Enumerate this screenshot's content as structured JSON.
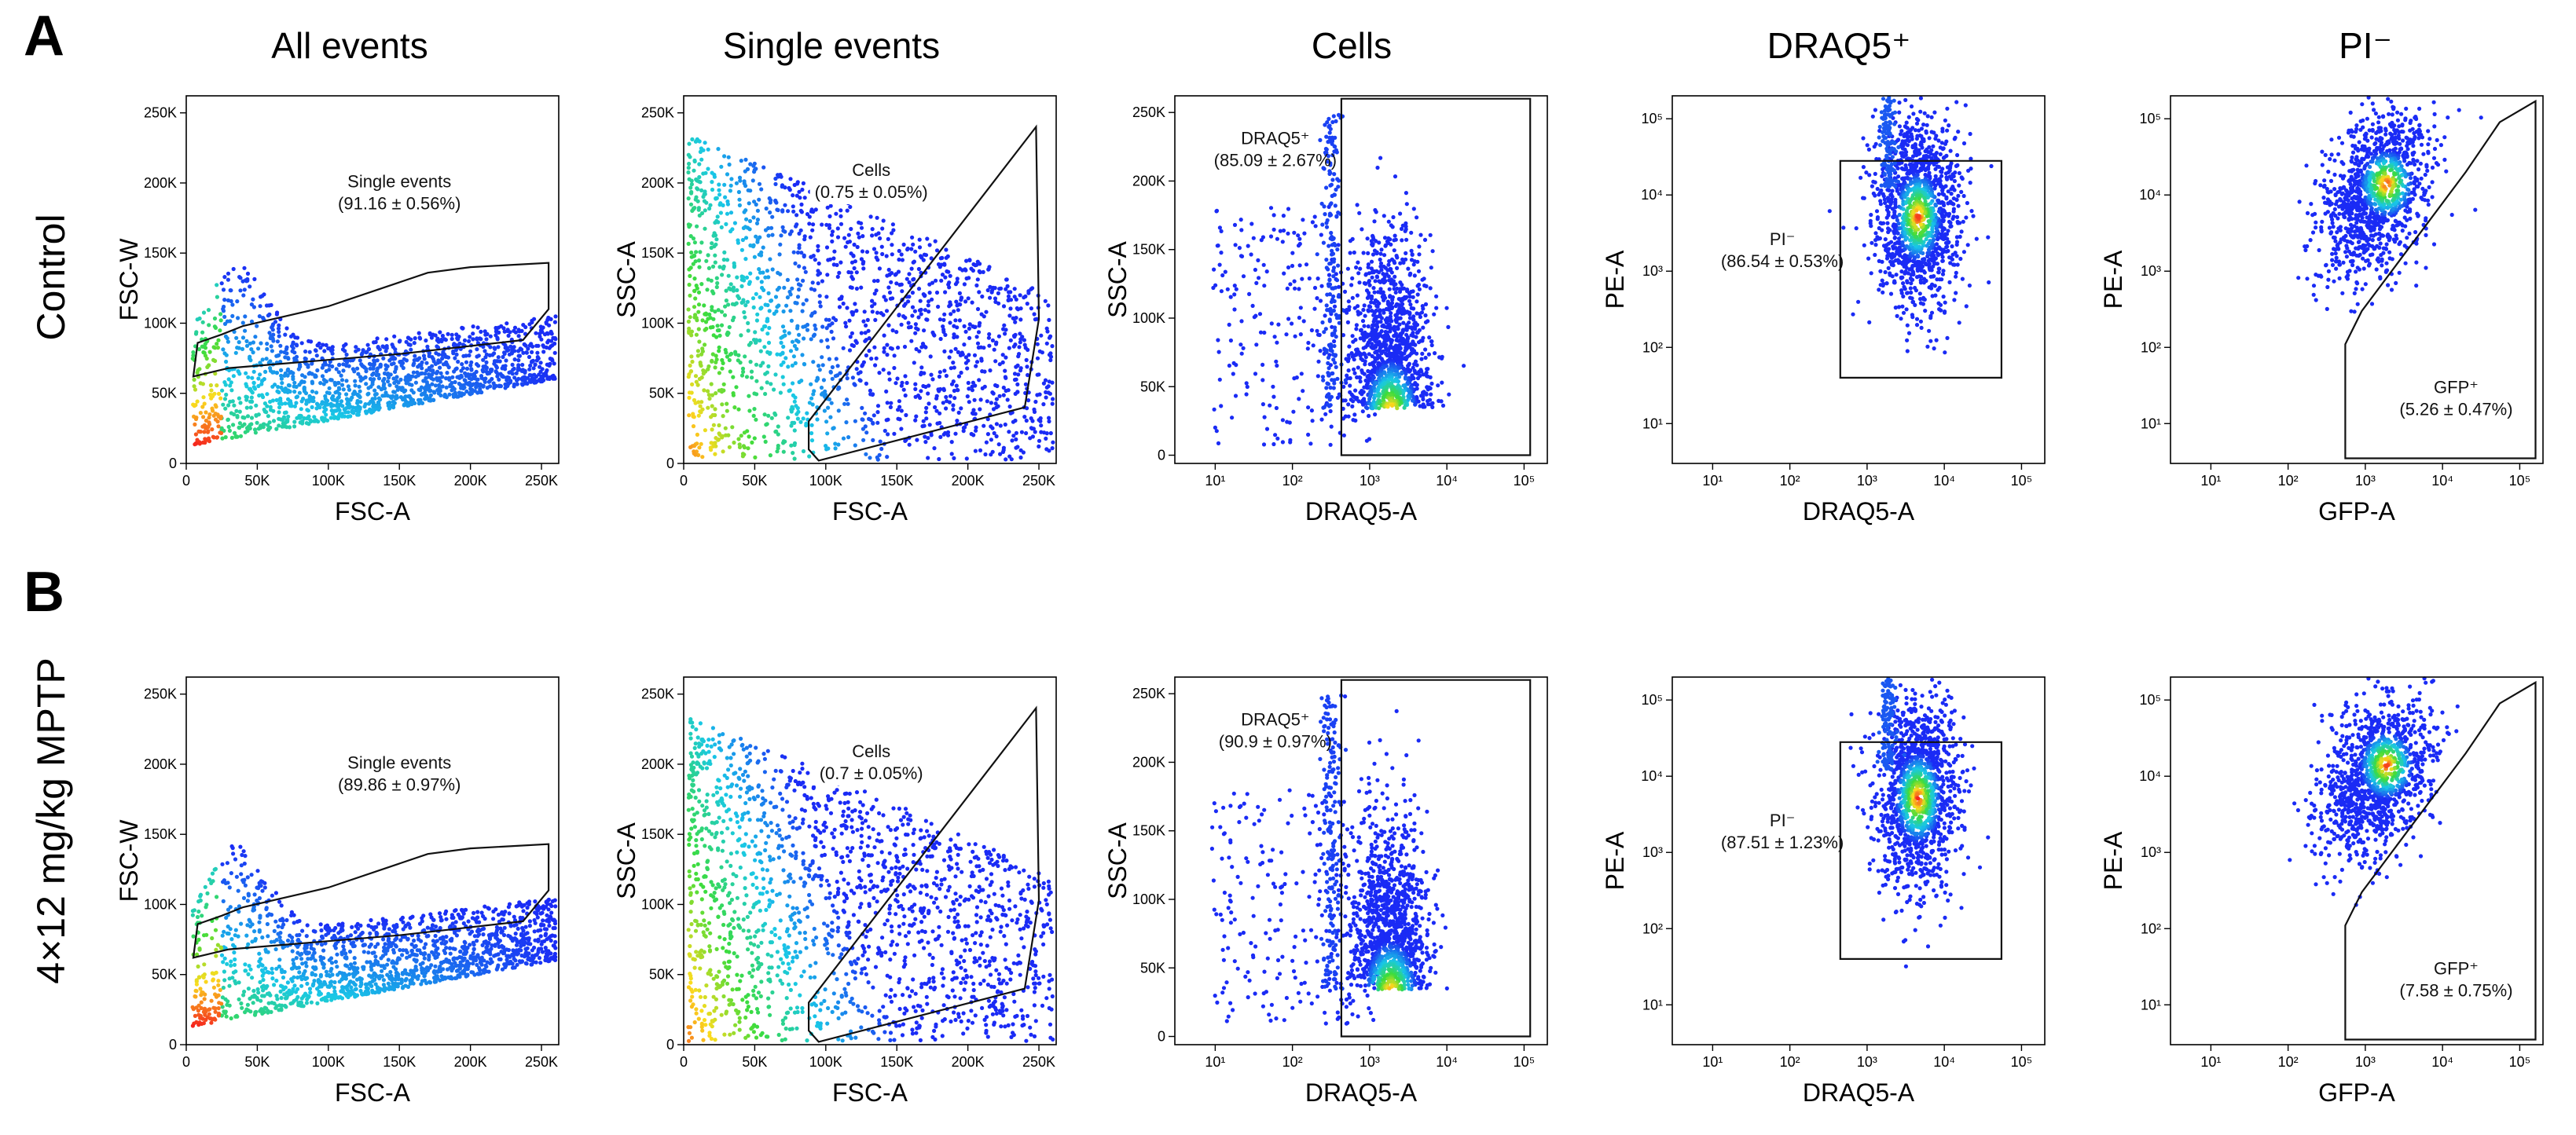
{
  "panels": [
    {
      "letter": "A",
      "condition": "Control"
    },
    {
      "letter": "B",
      "condition": "4×12 mg/kg MPTP"
    }
  ],
  "columns": [
    "All events",
    "Single events",
    "Cells",
    "DRAQ5⁺",
    "PI⁻"
  ],
  "chart_data": [
    {
      "panel": "A",
      "column": "All events",
      "type": "scatter",
      "plot": "density",
      "xlabel": "FSC-A",
      "ylabel": "FSC-W",
      "xscale": "linear",
      "yscale": "linear",
      "xlim": [
        0,
        262144
      ],
      "ylim": [
        0,
        262144
      ],
      "xticks": [
        0,
        50000,
        100000,
        150000,
        200000,
        250000
      ],
      "xtick_labels": [
        "0",
        "50K",
        "100K",
        "150K",
        "200K",
        "250K"
      ],
      "yticks": [
        0,
        50000,
        100000,
        150000,
        200000,
        250000
      ],
      "ytick_labels": [
        "0",
        "50K",
        "100K",
        "150K",
        "200K",
        "250K"
      ],
      "gate": {
        "name": "Single events",
        "value": "(91.16 ± 0.56%)",
        "label_pos": [
          150000,
          197000
        ],
        "polygon": [
          [
            5000,
            62000
          ],
          [
            30000,
            68000
          ],
          [
            150000,
            78000
          ],
          [
            237000,
            88000
          ],
          [
            255000,
            110000
          ],
          [
            255000,
            143000
          ],
          [
            200000,
            140000
          ],
          [
            170000,
            136000
          ],
          [
            100000,
            112000
          ],
          [
            40000,
            98000
          ],
          [
            25000,
            92000
          ],
          [
            8000,
            86000
          ]
        ]
      }
    },
    {
      "panel": "A",
      "column": "Single events",
      "type": "scatter",
      "plot": "density",
      "xlabel": "FSC-A",
      "ylabel": "SSC-A",
      "xscale": "linear",
      "yscale": "linear",
      "xlim": [
        0,
        262144
      ],
      "ylim": [
        0,
        262144
      ],
      "xticks": [
        0,
        50000,
        100000,
        150000,
        200000,
        250000
      ],
      "xtick_labels": [
        "0",
        "50K",
        "100K",
        "150K",
        "200K",
        "250K"
      ],
      "yticks": [
        0,
        50000,
        100000,
        150000,
        200000,
        250000
      ],
      "ytick_labels": [
        "0",
        "50K",
        "100K",
        "150K",
        "200K",
        "250K"
      ],
      "gate": {
        "name": "Cells",
        "value": "(0.75 ± 0.05%)",
        "label_pos": [
          132000,
          205000
        ],
        "polygon": [
          [
            88000,
            10000
          ],
          [
            95000,
            2000
          ],
          [
            240000,
            40000
          ],
          [
            250000,
            103000
          ],
          [
            248000,
            240000
          ],
          [
            88000,
            30000
          ]
        ]
      }
    },
    {
      "panel": "A",
      "column": "Cells",
      "type": "scatter",
      "plot": "density",
      "xlabel": "DRAQ5-A",
      "ylabel": "SSC-A",
      "xscale": "log",
      "yscale": "linear",
      "xlim": [
        3,
        200000
      ],
      "ylim": [
        -6000,
        262144
      ],
      "xticks": [
        10,
        100,
        1000,
        10000,
        100000
      ],
      "xtick_labels": [
        "10¹",
        "10²",
        "10³",
        "10⁴",
        "10⁵"
      ],
      "yticks": [
        0,
        50000,
        100000,
        150000,
        200000,
        250000
      ],
      "ytick_labels": [
        "0",
        "50K",
        "100K",
        "150K",
        "200K",
        "250K"
      ],
      "gate": {
        "name": "DRAQ5⁺",
        "value": "(85.09 ± 2.67%)",
        "label_pos": [
          60,
          227000
        ],
        "polygon": [
          [
            430,
            0
          ],
          [
            430,
            260000
          ],
          [
            120000,
            260000
          ],
          [
            120000,
            0
          ]
        ]
      }
    },
    {
      "panel": "A",
      "column": "DRAQ5⁺",
      "type": "scatter",
      "plot": "density",
      "xlabel": "DRAQ5-A",
      "ylabel": "PE-A",
      "xscale": "log",
      "yscale": "log",
      "xlim": [
        3,
        200000
      ],
      "ylim": [
        3,
        200000
      ],
      "xticks": [
        10,
        100,
        1000,
        10000,
        100000
      ],
      "xtick_labels": [
        "10¹",
        "10²",
        "10³",
        "10⁴",
        "10⁵"
      ],
      "yticks": [
        10,
        100,
        1000,
        10000,
        100000
      ],
      "ytick_labels": [
        "10¹",
        "10²",
        "10³",
        "10⁴",
        "10⁵"
      ],
      "gate": {
        "name": "PI⁻",
        "value": "(86.54 ± 0.53%)",
        "label_pos": [
          80,
          2200
        ],
        "polygon": [
          [
            450,
            40
          ],
          [
            450,
            28000
          ],
          [
            55000,
            28000
          ],
          [
            55000,
            40
          ]
        ]
      }
    },
    {
      "panel": "A",
      "column": "PI⁻",
      "type": "scatter",
      "plot": "density",
      "xlabel": "GFP-A",
      "ylabel": "PE-A",
      "xscale": "log",
      "yscale": "log",
      "xlim": [
        3,
        200000
      ],
      "ylim": [
        3,
        200000
      ],
      "xticks": [
        10,
        100,
        1000,
        10000,
        100000
      ],
      "xtick_labels": [
        "10¹",
        "10²",
        "10³",
        "10⁴",
        "10⁵"
      ],
      "yticks": [
        10,
        100,
        1000,
        10000,
        100000
      ],
      "ytick_labels": [
        "10¹",
        "10²",
        "10³",
        "10⁴",
        "10⁵"
      ],
      "gate": {
        "name": "GFP⁺",
        "value": "(5.26 ± 0.47%)",
        "label_pos": [
          15000,
          25
        ],
        "polygon": [
          [
            550,
            3.5
          ],
          [
            550,
            110
          ],
          [
            900,
            300
          ],
          [
            20000,
            20000
          ],
          [
            55000,
            90000
          ],
          [
            160000,
            170000
          ],
          [
            160000,
            3.5
          ]
        ]
      }
    },
    {
      "panel": "B",
      "column": "All events",
      "type": "scatter",
      "plot": "density",
      "xlabel": "FSC-A",
      "ylabel": "FSC-W",
      "xscale": "linear",
      "yscale": "linear",
      "xlim": [
        0,
        262144
      ],
      "ylim": [
        0,
        262144
      ],
      "xticks": [
        0,
        50000,
        100000,
        150000,
        200000,
        250000
      ],
      "xtick_labels": [
        "0",
        "50K",
        "100K",
        "150K",
        "200K",
        "250K"
      ],
      "yticks": [
        0,
        50000,
        100000,
        150000,
        200000,
        250000
      ],
      "ytick_labels": [
        "0",
        "50K",
        "100K",
        "150K",
        "200K",
        "250K"
      ],
      "gate": {
        "name": "Single events",
        "value": "(89.86 ± 0.97%)",
        "label_pos": [
          150000,
          197000
        ],
        "polygon": [
          [
            5000,
            62000
          ],
          [
            30000,
            68000
          ],
          [
            150000,
            78000
          ],
          [
            237000,
            88000
          ],
          [
            255000,
            110000
          ],
          [
            255000,
            143000
          ],
          [
            200000,
            140000
          ],
          [
            170000,
            136000
          ],
          [
            100000,
            112000
          ],
          [
            40000,
            98000
          ],
          [
            25000,
            92000
          ],
          [
            8000,
            86000
          ]
        ]
      }
    },
    {
      "panel": "B",
      "column": "Single events",
      "type": "scatter",
      "plot": "density",
      "xlabel": "FSC-A",
      "ylabel": "SSC-A",
      "xscale": "linear",
      "yscale": "linear",
      "xlim": [
        0,
        262144
      ],
      "ylim": [
        0,
        262144
      ],
      "xticks": [
        0,
        50000,
        100000,
        150000,
        200000,
        250000
      ],
      "xtick_labels": [
        "0",
        "50K",
        "100K",
        "150K",
        "200K",
        "250K"
      ],
      "yticks": [
        0,
        50000,
        100000,
        150000,
        200000,
        250000
      ],
      "ytick_labels": [
        "0",
        "50K",
        "100K",
        "150K",
        "200K",
        "250K"
      ],
      "gate": {
        "name": "Cells",
        "value": "(0.7 ± 0.05%)",
        "label_pos": [
          132000,
          205000
        ],
        "polygon": [
          [
            88000,
            10000
          ],
          [
            95000,
            2000
          ],
          [
            240000,
            40000
          ],
          [
            250000,
            103000
          ],
          [
            248000,
            240000
          ],
          [
            88000,
            30000
          ]
        ]
      }
    },
    {
      "panel": "B",
      "column": "Cells",
      "type": "scatter",
      "plot": "density",
      "xlabel": "DRAQ5-A",
      "ylabel": "SSC-A",
      "xscale": "log",
      "yscale": "linear",
      "xlim": [
        3,
        200000
      ],
      "ylim": [
        -6000,
        262144
      ],
      "xticks": [
        10,
        100,
        1000,
        10000,
        100000
      ],
      "xtick_labels": [
        "10¹",
        "10²",
        "10³",
        "10⁴",
        "10⁵"
      ],
      "yticks": [
        0,
        50000,
        100000,
        150000,
        200000,
        250000
      ],
      "ytick_labels": [
        "0",
        "50K",
        "100K",
        "150K",
        "200K",
        "250K"
      ],
      "gate": {
        "name": "DRAQ5⁺",
        "value": "(90.9 ± 0.97%)",
        "label_pos": [
          60,
          227000
        ],
        "polygon": [
          [
            430,
            0
          ],
          [
            430,
            260000
          ],
          [
            120000,
            260000
          ],
          [
            120000,
            0
          ]
        ]
      }
    },
    {
      "panel": "B",
      "column": "DRAQ5⁺",
      "type": "scatter",
      "plot": "density",
      "xlabel": "DRAQ5-A",
      "ylabel": "PE-A",
      "xscale": "log",
      "yscale": "log",
      "xlim": [
        3,
        200000
      ],
      "ylim": [
        3,
        200000
      ],
      "xticks": [
        10,
        100,
        1000,
        10000,
        100000
      ],
      "xtick_labels": [
        "10¹",
        "10²",
        "10³",
        "10⁴",
        "10⁵"
      ],
      "yticks": [
        10,
        100,
        1000,
        10000,
        100000
      ],
      "ytick_labels": [
        "10¹",
        "10²",
        "10³",
        "10⁴",
        "10⁵"
      ],
      "gate": {
        "name": "PI⁻",
        "value": "(87.51 ± 1.23%)",
        "label_pos": [
          80,
          2200
        ],
        "polygon": [
          [
            450,
            40
          ],
          [
            450,
            28000
          ],
          [
            55000,
            28000
          ],
          [
            55000,
            40
          ]
        ]
      }
    },
    {
      "panel": "B",
      "column": "PI⁻",
      "type": "scatter",
      "plot": "density",
      "xlabel": "GFP-A",
      "ylabel": "PE-A",
      "xscale": "log",
      "yscale": "log",
      "xlim": [
        3,
        200000
      ],
      "ylim": [
        3,
        200000
      ],
      "xticks": [
        10,
        100,
        1000,
        10000,
        100000
      ],
      "xtick_labels": [
        "10¹",
        "10²",
        "10³",
        "10⁴",
        "10⁵"
      ],
      "yticks": [
        10,
        100,
        1000,
        10000,
        100000
      ],
      "ytick_labels": [
        "10¹",
        "10²",
        "10³",
        "10⁴",
        "10⁵"
      ],
      "gate": {
        "name": "GFP⁺",
        "value": "(7.58 ± 0.75%)",
        "label_pos": [
          15000,
          25
        ],
        "polygon": [
          [
            550,
            3.5
          ],
          [
            550,
            110
          ],
          [
            900,
            300
          ],
          [
            20000,
            20000
          ],
          [
            55000,
            90000
          ],
          [
            160000,
            170000
          ],
          [
            160000,
            3.5
          ]
        ]
      }
    }
  ],
  "colors": {
    "density_low": "#1a2bf5",
    "density_mid": "#19e0d8",
    "density_high": "#f5231e",
    "gate_line": "#111111",
    "axis": "#000000"
  }
}
